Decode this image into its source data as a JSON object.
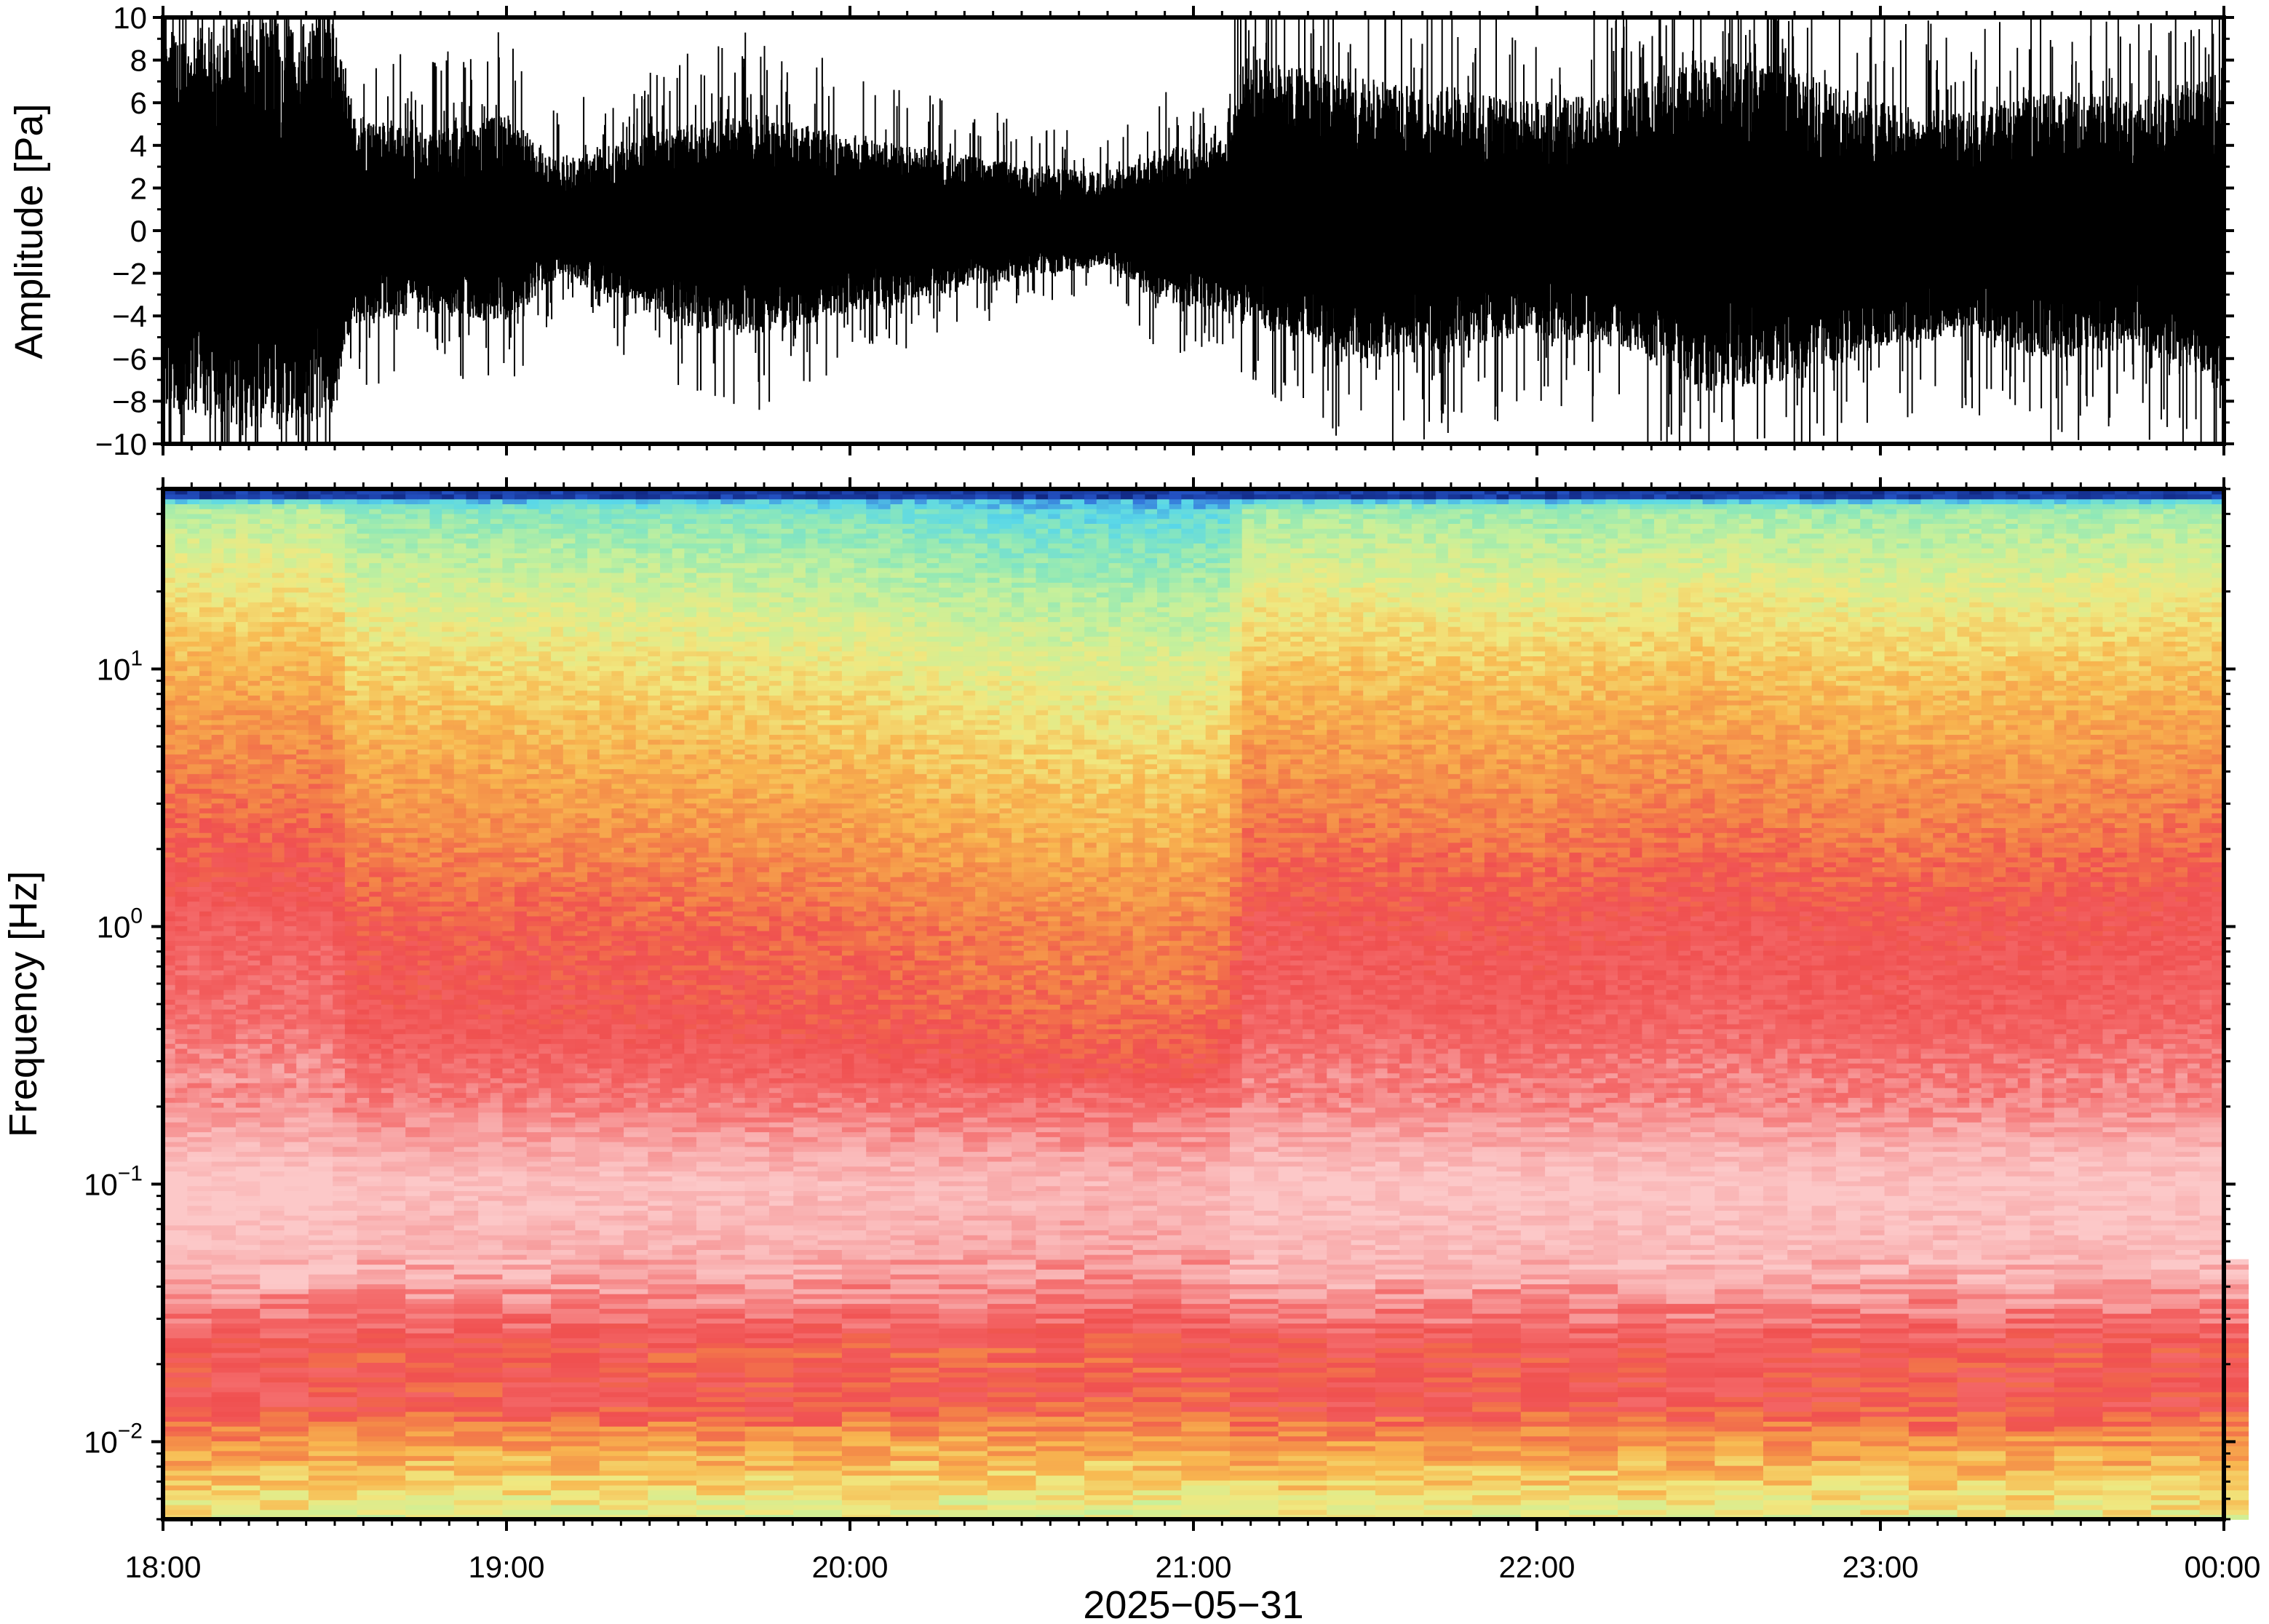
{
  "chart_data": [
    {
      "type": "line",
      "panel": "waveform",
      "ylabel": "Amplitude [Pa]",
      "ylim": [
        -10,
        10
      ],
      "yticks": [
        10,
        8,
        6,
        4,
        2,
        0,
        -2,
        -4,
        -6,
        -8,
        -10
      ],
      "ytick_labels": [
        "10",
        "8",
        "6",
        "4",
        "2",
        "0",
        "−2",
        "−4",
        "−6",
        "−8",
        "−10"
      ],
      "xlim": [
        "18:00",
        "00:00"
      ],
      "line_color": "#000000",
      "envelope": {
        "description_times_h": [
          18.0,
          18.25,
          18.5,
          18.55,
          18.75,
          19.0,
          19.15,
          19.5,
          19.75,
          20.0,
          20.25,
          20.5,
          20.75,
          20.9,
          21.1,
          21.15,
          21.5,
          21.75,
          22.0,
          22.25,
          22.5,
          22.75,
          23.0,
          23.25,
          23.5,
          23.75,
          24.0
        ],
        "upper": [
          8.5,
          9.0,
          8.8,
          5.0,
          4.2,
          5.0,
          3.0,
          4.5,
          5.0,
          4.0,
          3.5,
          2.8,
          2.5,
          3.5,
          4.0,
          7.5,
          6.5,
          6.0,
          5.5,
          6.0,
          7.5,
          7.0,
          5.5,
          5.0,
          6.0,
          5.5,
          7.0
        ],
        "lower": [
          -7.5,
          -8.5,
          -8.0,
          -4.0,
          -3.5,
          -4.0,
          -2.0,
          -4.0,
          -4.5,
          -3.5,
          -2.8,
          -2.0,
          -1.5,
          -3.0,
          -3.5,
          -4.0,
          -5.5,
          -5.0,
          -4.5,
          -5.0,
          -7.0,
          -6.5,
          -5.0,
          -4.5,
          -5.5,
          -5.0,
          -7.0
        ]
      }
    },
    {
      "type": "heatmap",
      "panel": "spectrogram",
      "ylabel": "Frequency [Hz]",
      "xlabel": "2025−05−31",
      "yscale": "log",
      "ylim": [
        0.005,
        50
      ],
      "yticks": [
        0.01,
        0.1,
        1,
        10
      ],
      "ytick_base": [
        "10",
        "10",
        "10",
        "10"
      ],
      "ytick_exp": [
        "−2",
        "−1",
        "0",
        "1"
      ],
      "x_ticks": [
        "18:00",
        "19:00",
        "20:00",
        "21:00",
        "22:00",
        "23:00",
        "00:00"
      ],
      "colormap": "rainbow (blue → cyan → green → yellow → orange → red → pink)",
      "colormap_stops": [
        "#0a1a6e",
        "#2a60d8",
        "#5ad8e8",
        "#8ee8b8",
        "#c8f09a",
        "#f0e880",
        "#f8b850",
        "#f48848",
        "#f05050",
        "#f46a6a",
        "#f8a8a8",
        "#fcc8c8"
      ],
      "power_profile": {
        "log10_freq": [
          -2.3,
          -2.15,
          -2.0,
          -1.85,
          -1.65,
          -1.35,
          -1.0,
          -0.7,
          -0.35,
          0.0,
          0.35,
          0.7,
          1.0,
          1.25,
          1.5,
          1.62,
          1.68,
          1.7
        ],
        "level": [
          4.6,
          5.6,
          6.6,
          8.1,
          8.0,
          10.2,
          10.8,
          9.4,
          8.3,
          7.9,
          7.0,
          6.2,
          5.4,
          4.6,
          3.6,
          3.0,
          1.0,
          0.0
        ]
      },
      "time_modulation": {
        "hours": [
          18.0,
          18.5,
          18.55,
          19.0,
          19.5,
          20.0,
          20.5,
          20.9,
          21.1,
          21.15,
          21.5,
          22.0,
          22.5,
          23.0,
          23.5,
          24.0
        ],
        "offset": [
          0.7,
          0.7,
          0.0,
          -0.1,
          -0.2,
          -0.4,
          -0.8,
          -0.9,
          -0.7,
          0.4,
          0.35,
          0.2,
          0.45,
          0.2,
          0.3,
          0.5
        ]
      }
    }
  ]
}
